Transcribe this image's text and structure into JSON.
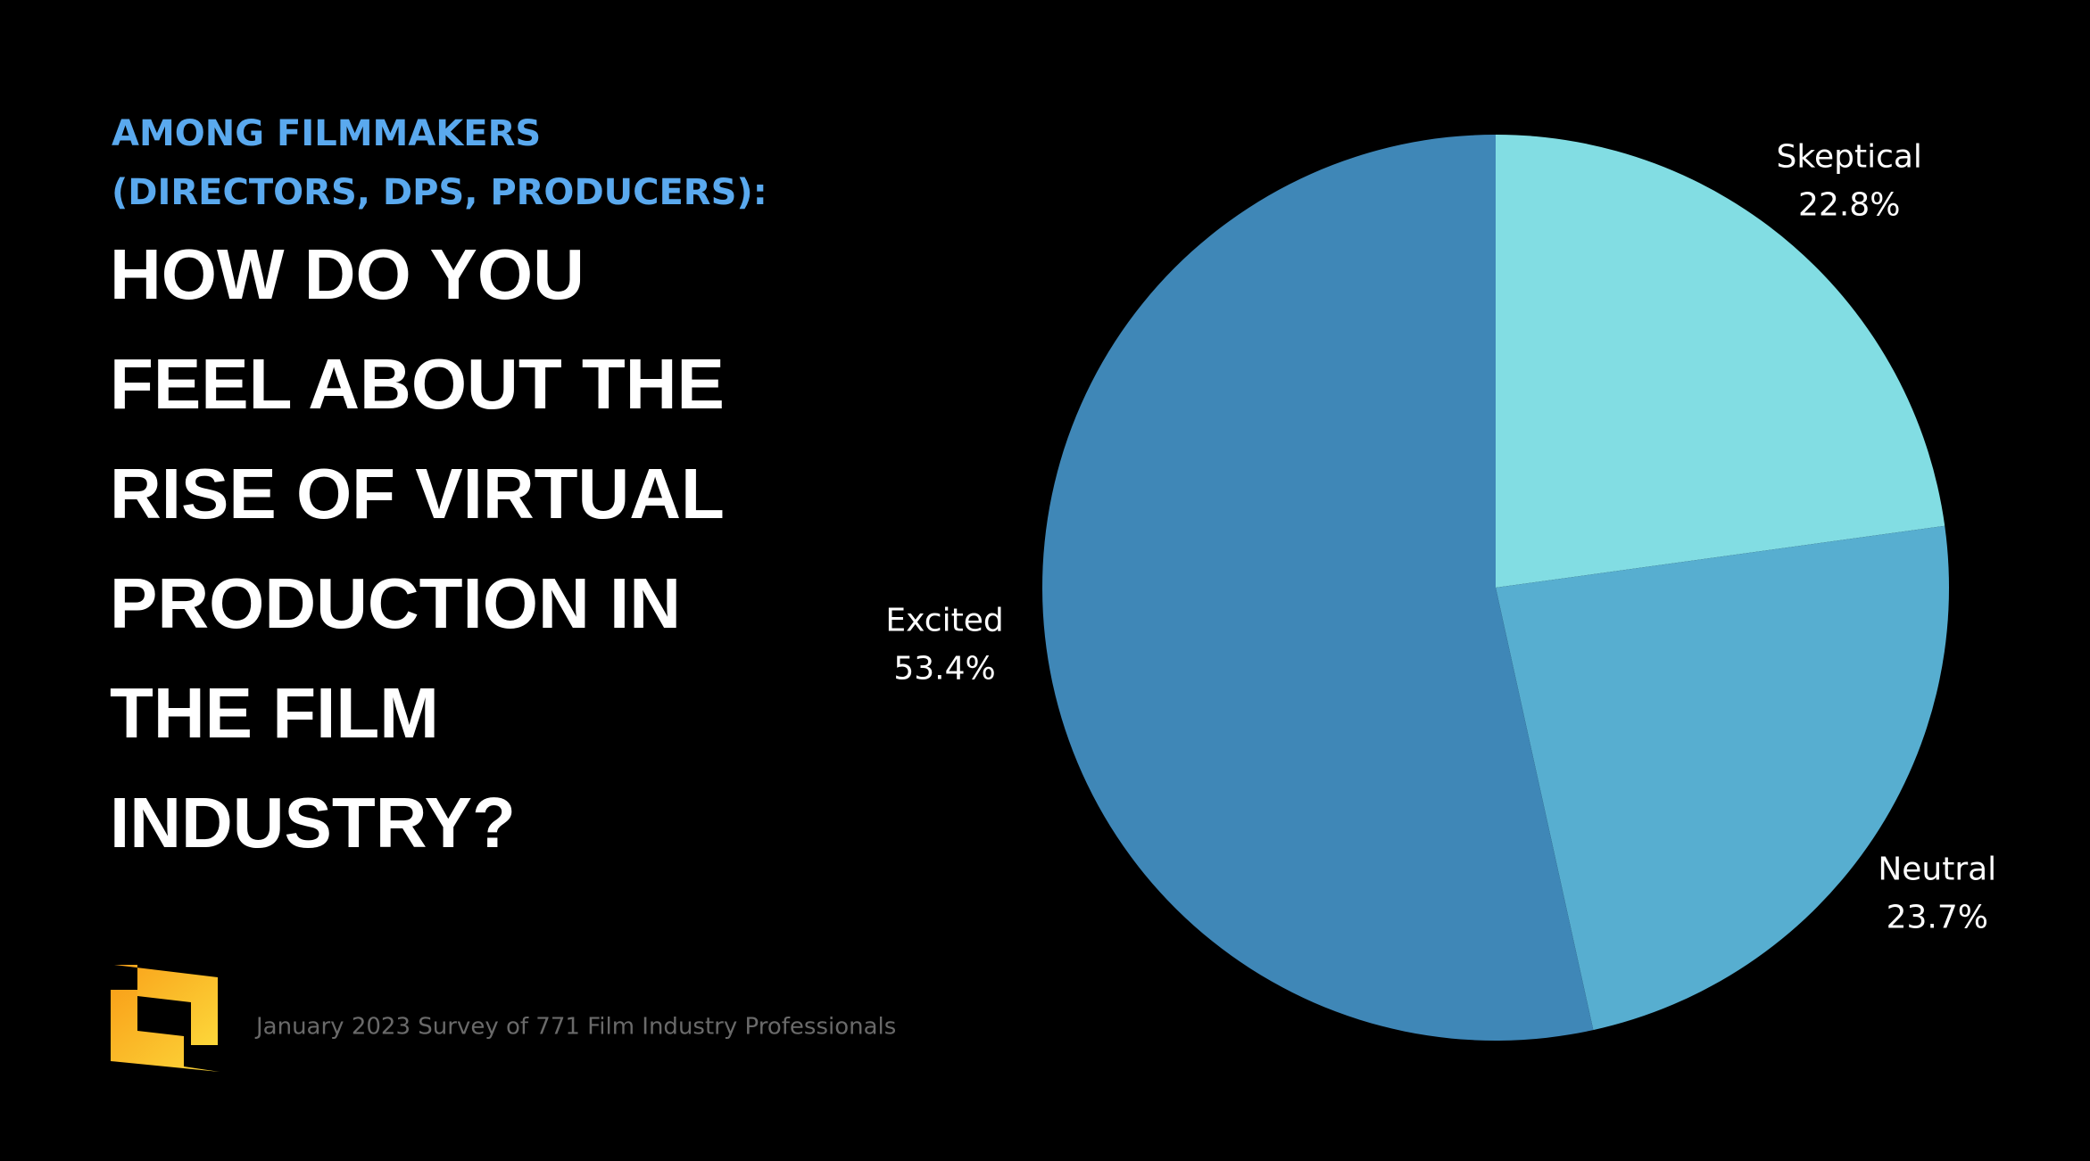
{
  "chart_data": {
    "type": "pie",
    "subtitle_lines": [
      "AMONG FILMMAKERS",
      "(DIRECTORS, DPS, PRODUCERS):"
    ],
    "title_lines": [
      "HOW DO YOU",
      "FEEL ABOUT THE",
      "RISE OF VIRTUAL",
      "PRODUCTION IN",
      "THE FILM",
      "INDUSTRY?"
    ],
    "source": "January 2023 Survey of 771 Film Industry Professionals",
    "categories": [
      "Skeptical",
      "Neutral",
      "Excited"
    ],
    "values": [
      22.8,
      23.7,
      53.4
    ],
    "value_labels": [
      "22.8%",
      "23.7%",
      "53.4%"
    ],
    "colors": [
      "#82dde3",
      "#57aed0",
      "#3f87b7"
    ]
  }
}
